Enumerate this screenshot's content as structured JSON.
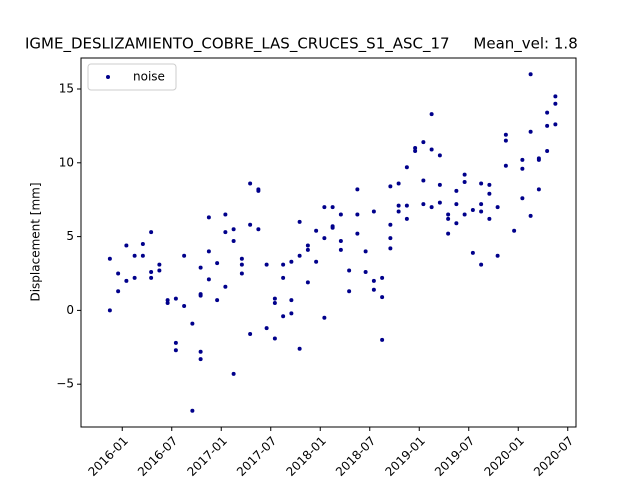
{
  "chart_data": {
    "type": "scatter",
    "title": "IGME_DESLIZAMIENTO_COBRE_LAS_CRUCES_S1_ASC_17     Mean_vel: 1.8",
    "ylabel": "Displacement [mm]",
    "legend": "upper left",
    "x": [
      "2015-11",
      "2015-11",
      "2015-12",
      "2015-12",
      "2016-01",
      "2016-01",
      "2016-02",
      "2016-02",
      "2016-03",
      "2016-03",
      "2016-04",
      "2016-04",
      "2016-04",
      "2016-05",
      "2016-05",
      "2016-06",
      "2016-06",
      "2016-07",
      "2016-07",
      "2016-07",
      "2016-08",
      "2016-08",
      "2016-09",
      "2016-09",
      "2016-10",
      "2016-10",
      "2016-10",
      "2016-10",
      "2016-10",
      "2016-11",
      "2016-11",
      "2016-11",
      "2016-12",
      "2016-12",
      "2017-01",
      "2017-01",
      "2017-01",
      "2017-02",
      "2017-02",
      "2017-02",
      "2017-03",
      "2017-03",
      "2017-03",
      "2017-04",
      "2017-04",
      "2017-04",
      "2017-05",
      "2017-05",
      "2017-05",
      "2017-06",
      "2017-06",
      "2017-07",
      "2017-07",
      "2017-07",
      "2017-08",
      "2017-08",
      "2017-08",
      "2017-09",
      "2017-09",
      "2017-09",
      "2017-10",
      "2017-10",
      "2017-10",
      "2017-11",
      "2017-11",
      "2017-11",
      "2017-12",
      "2017-12",
      "2018-01",
      "2018-01",
      "2018-01",
      "2018-02",
      "2018-02",
      "2018-02",
      "2018-03",
      "2018-03",
      "2018-03",
      "2018-04",
      "2018-04",
      "2018-05",
      "2018-05",
      "2018-05",
      "2018-06",
      "2018-06",
      "2018-07",
      "2018-07",
      "2018-07",
      "2018-08",
      "2018-08",
      "2018-08",
      "2018-09",
      "2018-09",
      "2018-09",
      "2018-09",
      "2018-10",
      "2018-10",
      "2018-10",
      "2018-11",
      "2018-11",
      "2018-11",
      "2018-12",
      "2018-12",
      "2019-01",
      "2019-01",
      "2019-01",
      "2019-02",
      "2019-02",
      "2019-02",
      "2019-03",
      "2019-03",
      "2019-03",
      "2019-04",
      "2019-04",
      "2019-04",
      "2019-05",
      "2019-05",
      "2019-05",
      "2019-06",
      "2019-06",
      "2019-06",
      "2019-07",
      "2019-07",
      "2019-08",
      "2019-08",
      "2019-08",
      "2019-08",
      "2019-09",
      "2019-09",
      "2019-09",
      "2019-10",
      "2019-10",
      "2019-11",
      "2019-11",
      "2019-11",
      "2019-12",
      "2020-01",
      "2020-01",
      "2020-01",
      "2020-02",
      "2020-02",
      "2020-02",
      "2020-03",
      "2020-03",
      "2020-03",
      "2020-04",
      "2020-04",
      "2020-04",
      "2020-05",
      "2020-05",
      "2020-05"
    ],
    "series": [
      {
        "name": "noise",
        "color": "#00008b",
        "values": [
          0.0,
          3.5,
          2.5,
          1.3,
          4.4,
          2.0,
          3.7,
          2.2,
          3.7,
          4.5,
          2.2,
          2.6,
          5.3,
          3.1,
          2.7,
          0.7,
          0.5,
          0.8,
          -2.2,
          -2.7,
          3.7,
          0.3,
          -6.8,
          -0.9,
          -3.3,
          2.9,
          1.1,
          -2.8,
          1.0,
          6.3,
          4.0,
          2.1,
          0.7,
          3.2,
          1.6,
          6.5,
          5.3,
          -4.3,
          4.7,
          5.5,
          3.1,
          3.5,
          2.5,
          -1.6,
          5.8,
          8.6,
          5.5,
          8.2,
          8.1,
          -1.2,
          3.1,
          0.8,
          0.5,
          -1.9,
          2.2,
          -0.4,
          3.1,
          -0.2,
          3.3,
          0.7,
          -2.6,
          6.0,
          3.7,
          4.4,
          1.9,
          4.1,
          3.3,
          5.4,
          4.9,
          -0.5,
          7.0,
          5.6,
          7.0,
          5.7,
          4.7,
          4.1,
          6.5,
          2.7,
          1.3,
          6.5,
          8.2,
          5.2,
          4.0,
          2.6,
          1.4,
          2.0,
          6.7,
          0.9,
          2.2,
          -2.0,
          4.2,
          8.4,
          4.9,
          5.8,
          6.7,
          8.6,
          7.1,
          6.2,
          9.7,
          7.1,
          11.0,
          10.8,
          8.8,
          7.2,
          11.4,
          10.9,
          7.0,
          13.3,
          10.5,
          8.5,
          7.3,
          6.5,
          5.2,
          6.2,
          7.2,
          8.1,
          5.9,
          9.2,
          8.7,
          6.5,
          3.9,
          6.8,
          8.6,
          7.2,
          3.1,
          6.7,
          8.5,
          7.9,
          6.2,
          7.0,
          3.7,
          11.5,
          9.8,
          11.9,
          5.4,
          7.6,
          9.6,
          10.2,
          12.1,
          6.4,
          16.0,
          10.2,
          10.3,
          8.2,
          10.8,
          12.5,
          13.4,
          14.0,
          12.6,
          14.5
        ]
      }
    ],
    "xlim": [
      "2015-08",
      "2020-08"
    ],
    "xticks": [
      "2016-01",
      "2016-07",
      "2017-01",
      "2017-07",
      "2018-01",
      "2018-07",
      "2019-01",
      "2019-07",
      "2020-01",
      "2020-07"
    ],
    "ylim": [
      -7.9,
      17.1
    ],
    "yticks": [
      {
        "value": -5,
        "label": "−5"
      },
      0,
      5,
      10,
      15
    ]
  }
}
